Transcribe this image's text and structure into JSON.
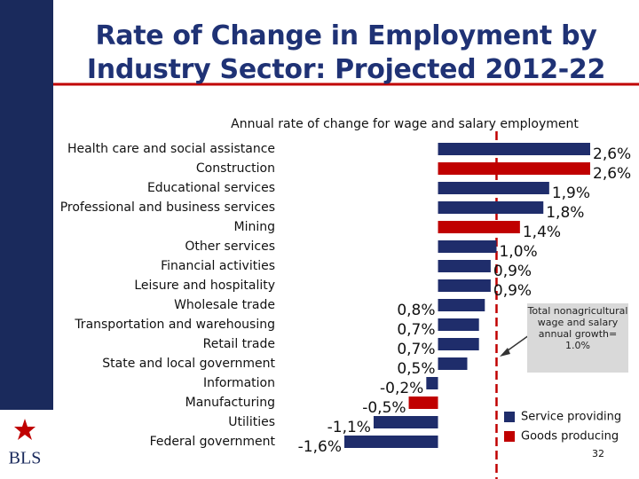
{
  "chart_data": {
    "type": "bar",
    "orientation": "horizontal",
    "title": "Rate of Change in Employment by Industry Sector: Projected 2012-22",
    "subtitle": "Annual rate of change for wage and salary employment",
    "categories": [
      "Health care and social assistance",
      "Construction",
      "Educational services",
      "Professional and business services",
      "Mining",
      "Other services",
      "Financial activities",
      "Leisure and hospitality",
      "Wholesale trade",
      "Transportation and warehousing",
      "Retail trade",
      "State and local government",
      "Information",
      "Manufacturing",
      "Utilities",
      "Federal government"
    ],
    "values": [
      2.6,
      2.6,
      1.9,
      1.8,
      1.4,
      1.0,
      0.9,
      0.9,
      0.8,
      0.7,
      0.7,
      0.5,
      -0.2,
      -0.5,
      -1.1,
      -1.6
    ],
    "value_labels": [
      "2,6%",
      "2,6%",
      "1,9%",
      "1,8%",
      "1,4%",
      "1,0%",
      "0,9%",
      "0,9%",
      "0,8%",
      "0,7%",
      "0,7%",
      "0,5%",
      "-0,2%",
      "-0,5%",
      "-1,1%",
      "-1,6%"
    ],
    "bar_colors": [
      "#1f2d6b",
      "#c00000",
      "#1f2d6b",
      "#1f2d6b",
      "#c00000",
      "#1f2d6b",
      "#1f2d6b",
      "#1f2d6b",
      "#1f2d6b",
      "#1f2d6b",
      "#1f2d6b",
      "#1f2d6b",
      "#1f2d6b",
      "#c00000",
      "#1f2d6b",
      "#1f2d6b"
    ],
    "legend": [
      {
        "name": "Service providing",
        "color": "#1f2d6b"
      },
      {
        "name": "Goods producing",
        "color": "#c00000"
      }
    ],
    "xlim": [
      -1.6,
      2.6
    ],
    "reference_value": 1.0,
    "reference_color": "#c00000",
    "annotation": "Total nonagricultural wage and salary annual growth= 1.0%"
  },
  "page_number": "32",
  "logo_text": "BLS"
}
